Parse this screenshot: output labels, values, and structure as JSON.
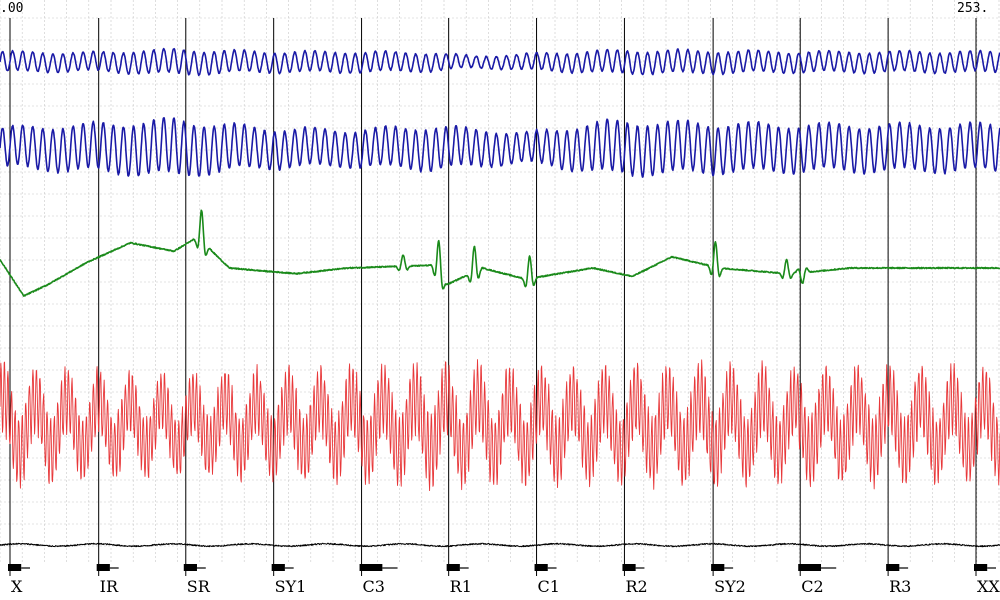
{
  "chart_data": {
    "type": "line",
    "title": "",
    "xlabel": "",
    "ylabel": "",
    "time_start_label": ".00",
    "time_end_label": "253.",
    "grid": true,
    "question_markers": [
      {
        "label": "X",
        "t": 0.0
      },
      {
        "label": "IR",
        "t": 22.4
      },
      {
        "label": "SR",
        "t": 44.4
      },
      {
        "label": "SY1",
        "t": 66.6
      },
      {
        "label": "C3",
        "t": 88.8
      },
      {
        "label": "R1",
        "t": 110.8
      },
      {
        "label": "C1",
        "t": 133.0
      },
      {
        "label": "R2",
        "t": 155.2
      },
      {
        "label": "SY2",
        "t": 177.6
      },
      {
        "label": "C2",
        "t": 199.6
      },
      {
        "label": "R3",
        "t": 221.8
      },
      {
        "label": "XX",
        "t": 244.0
      }
    ],
    "series": [
      {
        "color": "#1a1aa6",
        "cycle_period": 2.55,
        "baseline": 0,
        "amplitude_profile": [
          [
            0,
            0.45
          ],
          [
            22,
            0.4
          ],
          [
            44,
            0.55
          ],
          [
            66,
            0.45
          ],
          [
            88,
            0.45
          ],
          [
            110,
            0.4
          ],
          [
            120,
            0.25
          ],
          [
            133,
            0.35
          ],
          [
            155,
            0.5
          ],
          [
            177,
            0.5
          ],
          [
            199,
            0.45
          ],
          [
            244,
            0.45
          ],
          [
            253,
            0.45
          ]
        ]
      },
      {
        "color": "#1a1aa6",
        "cycle_period": 2.55,
        "baseline": 0,
        "amplitude_profile": [
          [
            0,
            0.6
          ],
          [
            22,
            0.7
          ],
          [
            44,
            0.85
          ],
          [
            66,
            0.6
          ],
          [
            88,
            0.55
          ],
          [
            110,
            0.65
          ],
          [
            133,
            0.45
          ],
          [
            155,
            0.8
          ],
          [
            177,
            0.75
          ],
          [
            199,
            0.7
          ],
          [
            244,
            0.7
          ],
          [
            253,
            0.7
          ]
        ]
      },
      {
        "color": "#1a8a1a",
        "baseline_profile": [
          [
            0,
            0.3
          ],
          [
            6,
            -1.0
          ],
          [
            12,
            -0.6
          ],
          [
            22,
            0.2
          ],
          [
            33,
            0.9
          ],
          [
            44,
            0.6
          ],
          [
            50,
            1.1
          ],
          [
            58,
            0.0
          ],
          [
            66,
            -0.1
          ],
          [
            75,
            -0.2
          ],
          [
            88,
            0.0
          ],
          [
            110,
            0.1
          ],
          [
            113,
            -0.6
          ],
          [
            122,
            0.0
          ],
          [
            133,
            -0.4
          ],
          [
            150,
            0.0
          ],
          [
            160,
            -0.3
          ],
          [
            170,
            0.4
          ],
          [
            182,
            0.0
          ],
          [
            199,
            -0.2
          ],
          [
            208,
            -0.1
          ],
          [
            215,
            0.0
          ],
          [
            244,
            0.0
          ],
          [
            253,
            0.0
          ]
        ],
        "spikes": [
          [
            51,
            1.1
          ],
          [
            102,
            0.4
          ],
          [
            111,
            1.1
          ],
          [
            120,
            0.9
          ],
          [
            134,
            0.8
          ],
          [
            181,
            0.9
          ],
          [
            199,
            0.5
          ],
          [
            203,
            -0.4
          ]
        ]
      },
      {
        "color": "#e8383a",
        "cycle_period": 0.9,
        "low_freq_period": 8.0,
        "amplitude_profile": [
          [
            0,
            0.9
          ],
          [
            22,
            0.8
          ],
          [
            44,
            0.75
          ],
          [
            66,
            0.8
          ],
          [
            88,
            0.85
          ],
          [
            110,
            0.9
          ],
          [
            133,
            0.85
          ],
          [
            155,
            0.85
          ],
          [
            177,
            0.9
          ],
          [
            199,
            0.85
          ],
          [
            244,
            0.85
          ],
          [
            253,
            0.85
          ]
        ]
      },
      {
        "color": "#000000",
        "noise_amplitude": 0.08
      }
    ]
  }
}
